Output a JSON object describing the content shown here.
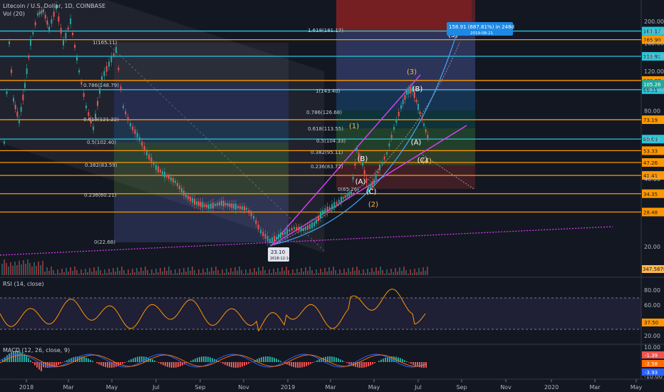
{
  "header": {
    "symbol": "Litecoin / U.S. Dollar, 1D, COINBASE",
    "volume": "Vol (20)"
  },
  "chart_data": {
    "type": "line",
    "price_axis": {
      "scale": "log",
      "ticks": [
        200,
        180,
        160,
        140,
        120,
        100,
        80,
        60,
        40,
        20
      ],
      "tick_labels": [
        "200.00",
        "180.00",
        "160.00",
        "140.00",
        "120.00",
        "100.00",
        "80.00",
        "60.00",
        "40.00",
        "20.00"
      ]
    },
    "time_axis": [
      "2018",
      "Mar",
      "May",
      "Jul",
      "Sep",
      "Nov",
      "2019",
      "Mar",
      "May",
      "Jul",
      "Sep",
      "Nov",
      "2020",
      "Mar",
      "May"
    ],
    "horizontal_levels": [
      {
        "value": 181.17,
        "label": "181.17",
        "color": "#26c6da"
      },
      {
        "value": 165.9,
        "label": "165.90",
        "color": "#ff9800"
      },
      {
        "value": 139.92,
        "label": "139.92",
        "color": "#26c6da"
      },
      {
        "value": 109.27,
        "label": "109.27",
        "color": "#ff9800"
      },
      {
        "value": 99.51,
        "label": "99.51",
        "color": "#26c6da"
      },
      {
        "value": 73.19,
        "label": "73.19",
        "color": "#ff9800"
      },
      {
        "value": 60.03,
        "label": "60.03",
        "color": "#26c6da"
      },
      {
        "value": 53.33,
        "label": "53.33",
        "color": "#ff9800"
      },
      {
        "value": 47.26,
        "label": "47.26",
        "color": "#ff9800"
      },
      {
        "value": 41.41,
        "label": "41.41",
        "color": "#ff9800"
      },
      {
        "value": 34.35,
        "label": "34.35",
        "color": "#ff9800"
      },
      {
        "value": 28.48,
        "label": "28.48",
        "color": "#ff9800"
      }
    ],
    "last_price": {
      "value": 105.26,
      "label": "105.26"
    },
    "fib_2018": [
      {
        "label": "1(165.11)"
      },
      {
        "label": "0.786(148.79)"
      },
      {
        "label": "0.618(121.22)"
      },
      {
        "label": "0.5(102.40)"
      },
      {
        "label": "0.382(83.59)"
      },
      {
        "label": "0.236(60.21)"
      },
      {
        "label": "0(22.68)"
      }
    ],
    "fib_2019": [
      {
        "label": "1.618(181.17)"
      },
      {
        "label": "1(143.40)"
      },
      {
        "label": "0.786(126.68)"
      },
      {
        "label": "0.618(113.55)"
      },
      {
        "label": "0.5(104.33)"
      },
      {
        "label": "0.382(95.11)"
      },
      {
        "label": "0.236(83.72)"
      },
      {
        "label": "0(65.26)"
      }
    ],
    "waves": [
      "(1)",
      "(2)",
      "(3)",
      "(A)",
      "(B)",
      "(C)",
      "(5)",
      "(A)",
      "(B)",
      "(C)",
      "(4)"
    ],
    "low_marker": {
      "value": "23.10",
      "date": "2018-12-14"
    },
    "projection": {
      "text": "158.91 (687.81%) in 248d",
      "date": "2019-08-21"
    },
    "volume_label": "347.587K",
    "rsi": {
      "title": "RSI (14, close)",
      "ticks": [
        "80.00",
        "60.00",
        "40.00",
        "20.00"
      ],
      "current": "37.50"
    },
    "macd": {
      "title": "MACD (12, 26, close, 9)",
      "ticks": [
        "10.00",
        "-10.00"
      ],
      "values": [
        "-1.39",
        "-2.58",
        "-3.93"
      ]
    }
  }
}
